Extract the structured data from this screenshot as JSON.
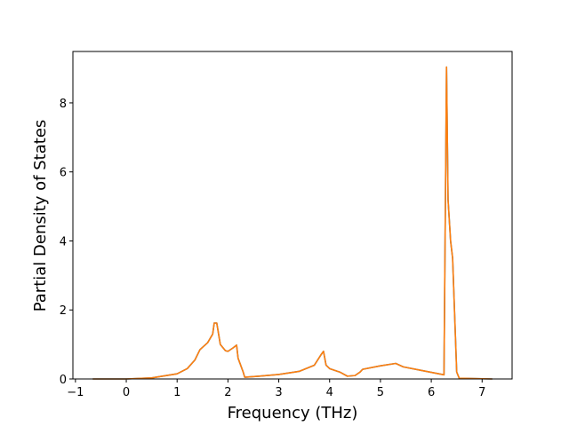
{
  "chart_data": {
    "type": "line",
    "xlabel": "Frequency (THz)",
    "ylabel": "Partial Density of States",
    "x": [
      -0.66,
      0,
      0.5,
      1.0,
      1.2,
      1.35,
      1.45,
      1.6,
      1.7,
      1.73,
      1.78,
      1.85,
      1.95,
      2.0,
      2.1,
      2.17,
      2.2,
      2.3,
      2.33,
      2.6,
      3.0,
      3.4,
      3.7,
      3.83,
      3.88,
      3.93,
      4.0,
      4.2,
      4.35,
      4.5,
      4.6,
      4.65,
      5.0,
      5.3,
      5.45,
      5.8,
      6.25,
      6.3,
      6.33,
      6.38,
      6.42,
      6.5,
      6.55,
      7.2
    ],
    "series": [
      {
        "color": "#1f77b4",
        "values": [
          0,
          0,
          0.03,
          0.15,
          0.3,
          0.55,
          0.85,
          1.05,
          1.3,
          1.62,
          1.62,
          1.0,
          0.82,
          0.8,
          0.9,
          0.98,
          0.6,
          0.2,
          0.05,
          0.08,
          0.13,
          0.22,
          0.4,
          0.7,
          0.8,
          0.4,
          0.3,
          0.2,
          0.08,
          0.1,
          0.2,
          0.28,
          0.38,
          0.45,
          0.35,
          0.25,
          0.12,
          9.04,
          5.2,
          4.0,
          3.5,
          0.2,
          0.02,
          0
        ]
      },
      {
        "color": "#ff7f0e",
        "values": [
          0,
          0,
          0.03,
          0.15,
          0.3,
          0.55,
          0.85,
          1.05,
          1.3,
          1.62,
          1.62,
          1.0,
          0.82,
          0.8,
          0.9,
          0.98,
          0.6,
          0.2,
          0.05,
          0.08,
          0.13,
          0.22,
          0.4,
          0.7,
          0.8,
          0.4,
          0.3,
          0.2,
          0.08,
          0.1,
          0.2,
          0.28,
          0.38,
          0.45,
          0.35,
          0.25,
          0.12,
          9.04,
          5.2,
          4.0,
          3.5,
          0.2,
          0.02,
          0
        ]
      }
    ],
    "xlim": [
      -1.05,
      7.59
    ],
    "ylim": [
      0,
      9.49
    ],
    "xticks": [
      {
        "value": -1,
        "label": "−1"
      },
      0,
      1,
      2,
      3,
      4,
      5,
      6,
      7
    ],
    "yticks": [
      0,
      2,
      4,
      6,
      8
    ]
  }
}
